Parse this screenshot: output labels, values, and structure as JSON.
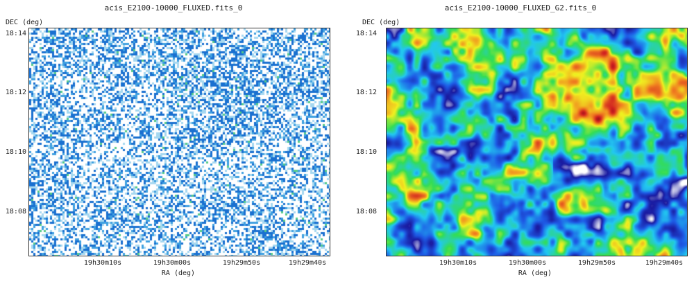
{
  "chart_data": [
    {
      "type": "heatmap",
      "title": "acis_E2100-10000_FLUXED.fits_0",
      "xlabel": "RA (deg)",
      "ylabel": "DEC (deg)",
      "x_ticks": [
        "19h30m10s",
        "19h30m00s",
        "19h29m50s",
        "19h29m40s"
      ],
      "y_ticks": [
        "18:14",
        "18:12",
        "18:10",
        "18:08"
      ],
      "colormap": [
        "#ffffff",
        "#a6d8f0",
        "#3fa0e0",
        "#1a70d0",
        "#55cc88"
      ]
    },
    {
      "type": "heatmap",
      "title": "acis_E2100-10000_FLUXED_G2.fits_0",
      "xlabel": "RA (deg)",
      "ylabel": "DEC (deg)",
      "x_ticks": [
        "19h30m10s",
        "19h30m00s",
        "19h29m50s",
        "19h29m40s"
      ],
      "y_ticks": [
        "18:14",
        "18:12",
        "18:10",
        "18:08"
      ],
      "colormap": [
        "#ffffff",
        "#1a1aa0",
        "#1e5ce6",
        "#22c8f0",
        "#33dd55",
        "#f0f020",
        "#f08020",
        "#d02020",
        "#601010"
      ]
    }
  ]
}
